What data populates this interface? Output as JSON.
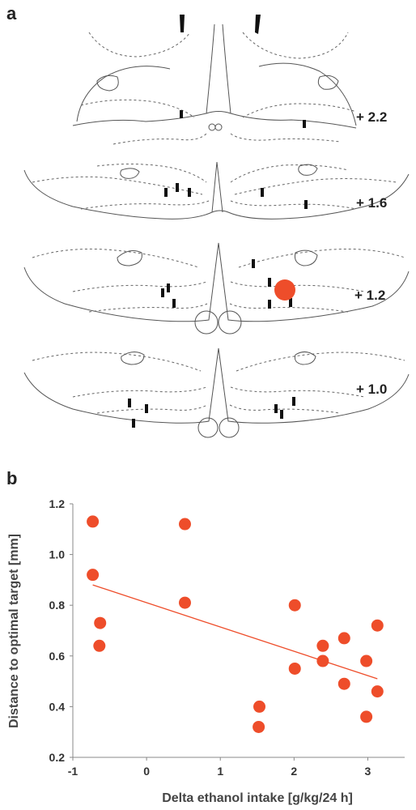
{
  "panel_a": {
    "label": "a",
    "sections": [
      {
        "label": "+ 2.2"
      },
      {
        "label": "+ 1.6"
      },
      {
        "label": "+ 1.2"
      },
      {
        "label": "+ 1.0"
      }
    ],
    "marker_color": "#ee4d2a"
  },
  "panel_b": {
    "label": "b"
  },
  "chart_data": {
    "type": "scatter",
    "xlabel": "Delta ethanol intake [g/kg/24 h]",
    "ylabel": "Distance to optimal target [mm]",
    "xlim": [
      -1,
      3.5
    ],
    "ylim": [
      0.2,
      1.2
    ],
    "x_ticks": [
      "-1",
      "0",
      "1",
      "2",
      "3"
    ],
    "y_ticks": [
      "0.2",
      "0.4",
      "0.6",
      "0.8",
      "1.0",
      "1.2"
    ],
    "points": [
      {
        "x": -0.73,
        "y": 1.13
      },
      {
        "x": -0.73,
        "y": 0.92
      },
      {
        "x": -0.63,
        "y": 0.73
      },
      {
        "x": -0.64,
        "y": 0.64
      },
      {
        "x": 0.52,
        "y": 1.12
      },
      {
        "x": 0.52,
        "y": 0.81
      },
      {
        "x": 1.53,
        "y": 0.4
      },
      {
        "x": 1.52,
        "y": 0.32
      },
      {
        "x": 2.01,
        "y": 0.8
      },
      {
        "x": 2.01,
        "y": 0.55
      },
      {
        "x": 2.39,
        "y": 0.64
      },
      {
        "x": 2.39,
        "y": 0.58
      },
      {
        "x": 2.68,
        "y": 0.67
      },
      {
        "x": 2.68,
        "y": 0.49
      },
      {
        "x": 2.98,
        "y": 0.58
      },
      {
        "x": 2.98,
        "y": 0.36
      },
      {
        "x": 3.13,
        "y": 0.72
      },
      {
        "x": 3.13,
        "y": 0.46
      }
    ],
    "trendline": {
      "x": [
        -0.73,
        3.13
      ],
      "y": [
        0.88,
        0.51
      ]
    },
    "color": "#ee4d2a",
    "grid": false
  }
}
